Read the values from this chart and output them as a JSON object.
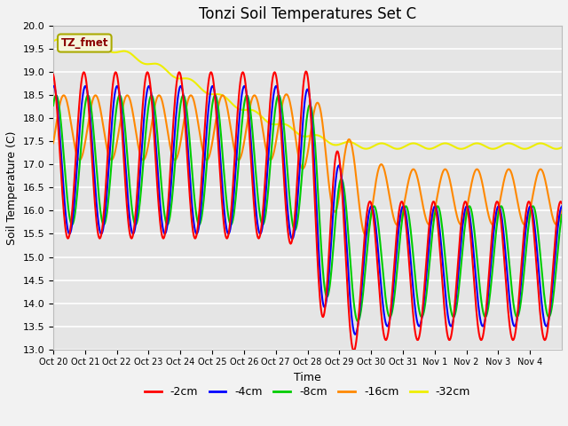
{
  "title": "Tonzi Soil Temperatures Set C",
  "xlabel": "Time",
  "ylabel": "Soil Temperature (C)",
  "ylim": [
    13.0,
    20.0
  ],
  "yticks": [
    13.0,
    13.5,
    14.0,
    14.5,
    15.0,
    15.5,
    16.0,
    16.5,
    17.0,
    17.5,
    18.0,
    18.5,
    19.0,
    19.5,
    20.0
  ],
  "xtick_labels": [
    "Oct 20",
    "Oct 21",
    "Oct 22",
    "Oct 23",
    "Oct 24",
    "Oct 25",
    "Oct 26",
    "Oct 27",
    "Oct 28",
    "Oct 29",
    "Oct 30",
    "Oct 31",
    "Nov 1",
    "Nov 2",
    "Nov 3",
    "Nov 4"
  ],
  "colors": {
    "2cm": "#ff0000",
    "4cm": "#0000ff",
    "8cm": "#00cc00",
    "16cm": "#ff8800",
    "32cm": "#eeee00"
  },
  "legend_label": "TZ_fmet",
  "plot_bg": "#e5e5e5",
  "fig_bg": "#f2f2f2",
  "title_fontsize": 12,
  "axis_label_fontsize": 9,
  "tick_fontsize": 8
}
